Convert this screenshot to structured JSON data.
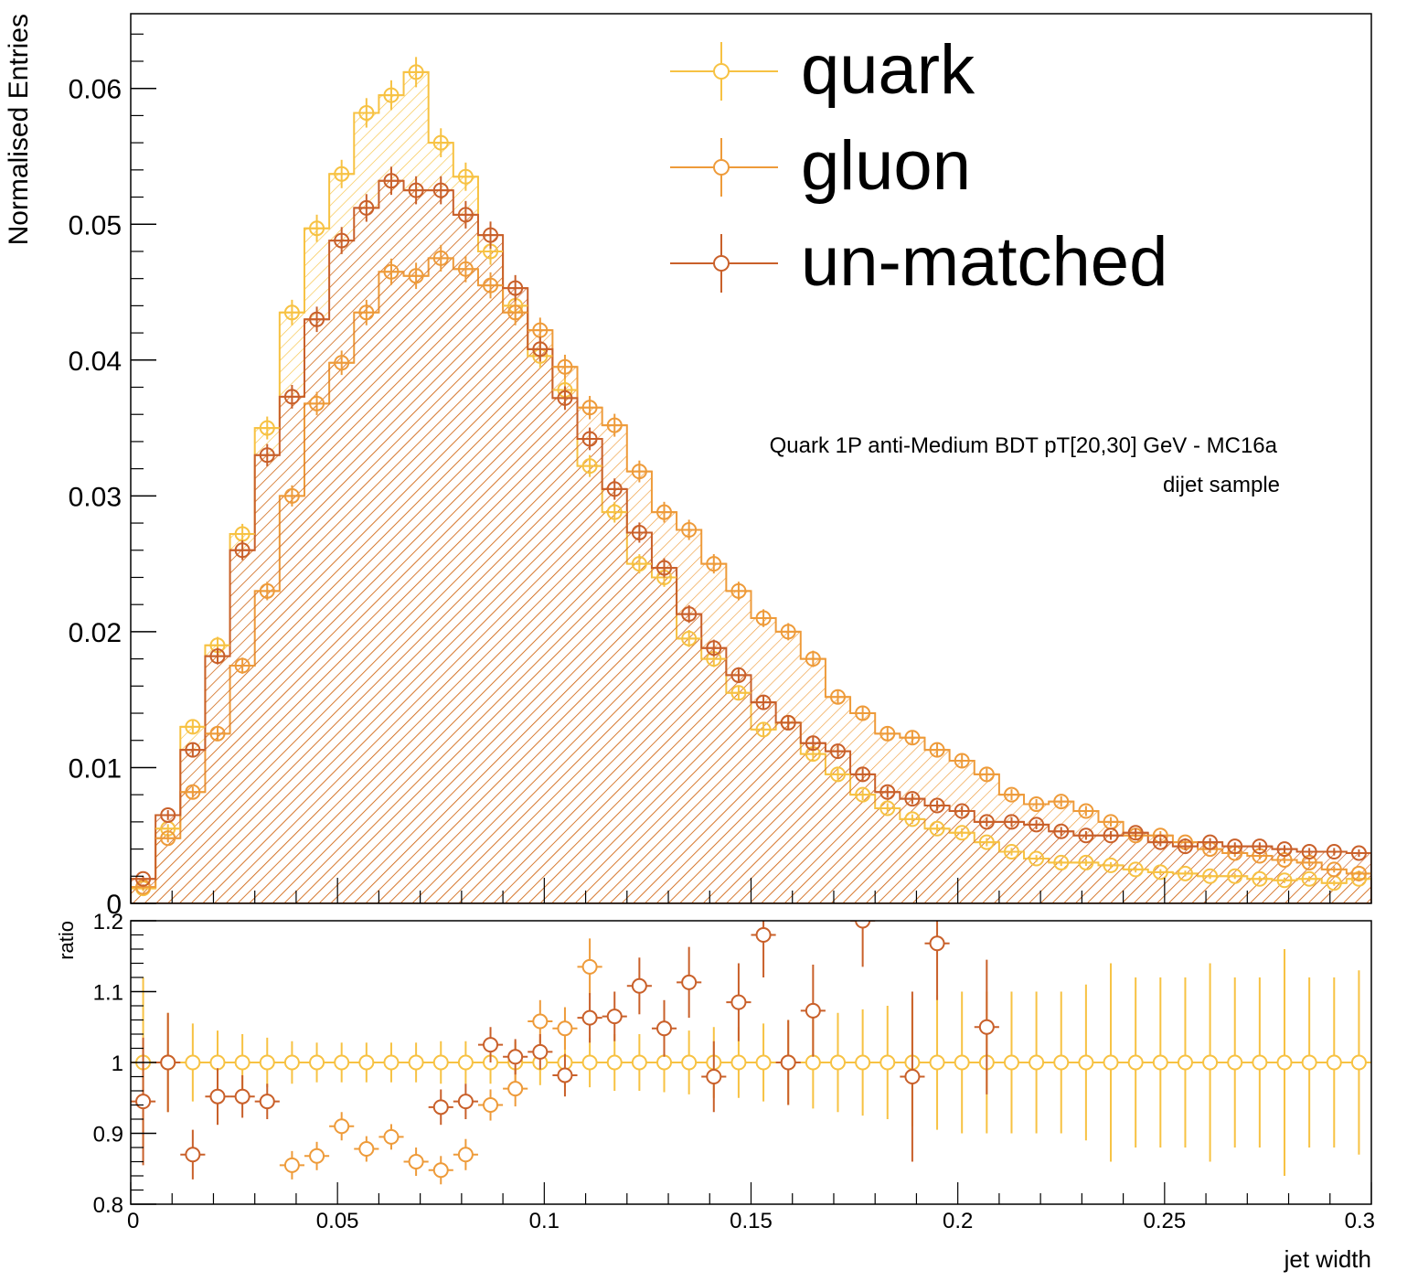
{
  "colors": {
    "quark": "#F7C243",
    "gluon": "#EE9B3A",
    "unmatched": "#C9602A",
    "axis": "#000000",
    "background": "#ffffff"
  },
  "chart_data": [
    {
      "type": "step",
      "panel": "main",
      "xlabel": "",
      "ylabel": "Normalised Entries",
      "xlim": [
        0,
        0.3
      ],
      "ylim": [
        0,
        0.0655
      ],
      "yticks": [
        0,
        0.01,
        0.02,
        0.03,
        0.04,
        0.05,
        0.06
      ],
      "ytick_labels": [
        "0",
        "0.01",
        "0.02",
        "0.03",
        "0.04",
        "0.05",
        "0.06"
      ],
      "annotation_line1": "Quark 1P anti-Medium BDT pT[20,30] GeV - MC16a",
      "annotation_line2": "dijet sample",
      "legend_position": "top-center",
      "bin_edges_from": 0,
      "bin_width": 0.006,
      "series": [
        {
          "name": "quark",
          "color_key": "quark",
          "values": [
            0.0011,
            0.0055,
            0.013,
            0.019,
            0.0272,
            0.035,
            0.0435,
            0.0497,
            0.0537,
            0.0582,
            0.0595,
            0.0612,
            0.056,
            0.0535,
            0.048,
            0.044,
            0.0403,
            0.0378,
            0.0322,
            0.0288,
            0.025,
            0.024,
            0.0195,
            0.018,
            0.0155,
            0.0128,
            0.0133,
            0.011,
            0.0095,
            0.008,
            0.007,
            0.0062,
            0.0055,
            0.0052,
            0.0045,
            0.0038,
            0.0033,
            0.003,
            0.003,
            0.0028,
            0.0025,
            0.0023,
            0.0022,
            0.002,
            0.002,
            0.0018,
            0.0017,
            0.0018,
            0.0015,
            0.0018
          ]
        },
        {
          "name": "gluon",
          "color_key": "gluon",
          "values": [
            0.0012,
            0.0048,
            0.0082,
            0.0125,
            0.0175,
            0.023,
            0.03,
            0.0368,
            0.0398,
            0.0435,
            0.0465,
            0.0462,
            0.0475,
            0.0467,
            0.0455,
            0.0435,
            0.0422,
            0.0395,
            0.0365,
            0.0352,
            0.0318,
            0.0288,
            0.0275,
            0.025,
            0.023,
            0.021,
            0.02,
            0.018,
            0.0152,
            0.014,
            0.0125,
            0.0122,
            0.0113,
            0.0105,
            0.0095,
            0.008,
            0.0073,
            0.0075,
            0.0068,
            0.006,
            0.005,
            0.005,
            0.0045,
            0.004,
            0.0037,
            0.0035,
            0.0032,
            0.003,
            0.0025,
            0.0022
          ]
        },
        {
          "name": "un-matched",
          "color_key": "unmatched",
          "values": [
            0.0018,
            0.0065,
            0.0113,
            0.0182,
            0.026,
            0.033,
            0.0373,
            0.043,
            0.0488,
            0.0512,
            0.0532,
            0.0525,
            0.0525,
            0.0507,
            0.0492,
            0.0453,
            0.0408,
            0.0372,
            0.0342,
            0.0305,
            0.0273,
            0.0247,
            0.0213,
            0.0188,
            0.0168,
            0.0148,
            0.0133,
            0.0118,
            0.0112,
            0.0095,
            0.0082,
            0.0077,
            0.0072,
            0.0068,
            0.006,
            0.006,
            0.0058,
            0.0053,
            0.005,
            0.005,
            0.0052,
            0.0045,
            0.0042,
            0.0045,
            0.0042,
            0.0042,
            0.004,
            0.0038,
            0.0038,
            0.0037
          ]
        }
      ]
    },
    {
      "type": "scatter",
      "panel": "ratio",
      "xlabel": "jet width",
      "ylabel": "ratio",
      "xlim": [
        0,
        0.3
      ],
      "ylim": [
        0.8,
        1.2
      ],
      "xticks": [
        0,
        0.05,
        0.1,
        0.15,
        0.2,
        0.25,
        0.3
      ],
      "xtick_labels": [
        "0",
        "0.05",
        "0.1",
        "0.15",
        "0.2",
        "0.25",
        "0.3"
      ],
      "yticks": [
        0.8,
        0.9,
        1,
        1.1,
        1.2
      ],
      "ytick_labels": [
        "0.8",
        "0.9",
        "1",
        "1.1",
        "1.2"
      ],
      "series": [
        {
          "name": "quark",
          "color_key": "quark",
          "points": [
            [
              0.003,
              1.0,
              0.12
            ],
            [
              0.009,
              1.0,
              0.07
            ],
            [
              0.015,
              1.0,
              0.055
            ],
            [
              0.021,
              1.0,
              0.045
            ],
            [
              0.027,
              1.0,
              0.04
            ],
            [
              0.033,
              1.0,
              0.035
            ],
            [
              0.039,
              1.0,
              0.03
            ],
            [
              0.045,
              1.0,
              0.028
            ],
            [
              0.051,
              1.0,
              0.028
            ],
            [
              0.057,
              1.0,
              0.028
            ],
            [
              0.063,
              1.0,
              0.028
            ],
            [
              0.069,
              1.0,
              0.028
            ],
            [
              0.075,
              1.0,
              0.03
            ],
            [
              0.081,
              1.0,
              0.03
            ],
            [
              0.087,
              1.0,
              0.03
            ],
            [
              0.093,
              1.0,
              0.03
            ],
            [
              0.099,
              1.0,
              0.032
            ],
            [
              0.105,
              1.0,
              0.035
            ],
            [
              0.111,
              1.0,
              0.035
            ],
            [
              0.117,
              1.0,
              0.04
            ],
            [
              0.123,
              1.0,
              0.04
            ],
            [
              0.129,
              1.0,
              0.042
            ],
            [
              0.135,
              1.0,
              0.045
            ],
            [
              0.141,
              1.0,
              0.05
            ],
            [
              0.147,
              1.0,
              0.05
            ],
            [
              0.153,
              1.0,
              0.055
            ],
            [
              0.159,
              1.0,
              0.06
            ],
            [
              0.165,
              1.0,
              0.065
            ],
            [
              0.171,
              1.0,
              0.07
            ],
            [
              0.177,
              1.0,
              0.075
            ],
            [
              0.183,
              1.0,
              0.08
            ],
            [
              0.189,
              1.0,
              0.09
            ],
            [
              0.195,
              1.0,
              0.095
            ],
            [
              0.201,
              1.0,
              0.1
            ],
            [
              0.207,
              1.0,
              0.1
            ],
            [
              0.213,
              1.0,
              0.1
            ],
            [
              0.219,
              1.0,
              0.1
            ],
            [
              0.225,
              1.0,
              0.1
            ],
            [
              0.231,
              1.0,
              0.11
            ],
            [
              0.237,
              1.0,
              0.14
            ],
            [
              0.243,
              1.0,
              0.12
            ],
            [
              0.249,
              1.0,
              0.12
            ],
            [
              0.255,
              1.0,
              0.12
            ],
            [
              0.261,
              1.0,
              0.14
            ],
            [
              0.267,
              1.0,
              0.12
            ],
            [
              0.273,
              1.0,
              0.12
            ],
            [
              0.279,
              1.0,
              0.16
            ],
            [
              0.285,
              1.0,
              0.12
            ],
            [
              0.291,
              1.0,
              0.12
            ],
            [
              0.297,
              1.0,
              0.13
            ]
          ]
        },
        {
          "name": "gluon",
          "color_key": "gluon",
          "points": [
            [
              0.039,
              0.855,
              0.02
            ],
            [
              0.045,
              0.868,
              0.02
            ],
            [
              0.051,
              0.91,
              0.02
            ],
            [
              0.057,
              0.878,
              0.018
            ],
            [
              0.063,
              0.895,
              0.018
            ],
            [
              0.069,
              0.86,
              0.02
            ],
            [
              0.075,
              0.848,
              0.02
            ],
            [
              0.081,
              0.87,
              0.022
            ],
            [
              0.087,
              0.94,
              0.022
            ],
            [
              0.093,
              0.963,
              0.025
            ],
            [
              0.099,
              1.058,
              0.03
            ],
            [
              0.105,
              1.048,
              0.03
            ],
            [
              0.111,
              1.135,
              0.04
            ]
          ]
        },
        {
          "name": "un-matched",
          "color_key": "unmatched",
          "points": [
            [
              0.003,
              0.945,
              0.09
            ],
            [
              0.009,
              1.0,
              0.07
            ],
            [
              0.015,
              0.87,
              0.035
            ],
            [
              0.021,
              0.952,
              0.04
            ],
            [
              0.027,
              0.952,
              0.03
            ],
            [
              0.033,
              0.945,
              0.025
            ],
            [
              0.075,
              0.937,
              0.025
            ],
            [
              0.081,
              0.945,
              0.025
            ],
            [
              0.087,
              1.025,
              0.025
            ],
            [
              0.093,
              1.008,
              0.025
            ],
            [
              0.099,
              1.015,
              0.025
            ],
            [
              0.105,
              0.982,
              0.03
            ],
            [
              0.111,
              1.063,
              0.035
            ],
            [
              0.117,
              1.065,
              0.035
            ],
            [
              0.123,
              1.108,
              0.04
            ],
            [
              0.129,
              1.048,
              0.04
            ],
            [
              0.135,
              1.113,
              0.05
            ],
            [
              0.141,
              0.98,
              0.05
            ],
            [
              0.147,
              1.085,
              0.055
            ],
            [
              0.153,
              1.18,
              0.06
            ],
            [
              0.159,
              1.0,
              0.06
            ],
            [
              0.165,
              1.073,
              0.065
            ],
            [
              0.177,
              1.2,
              0.065
            ],
            [
              0.189,
              0.98,
              0.12
            ],
            [
              0.195,
              1.168,
              0.08
            ],
            [
              0.207,
              1.05,
              0.095
            ]
          ]
        }
      ]
    }
  ]
}
